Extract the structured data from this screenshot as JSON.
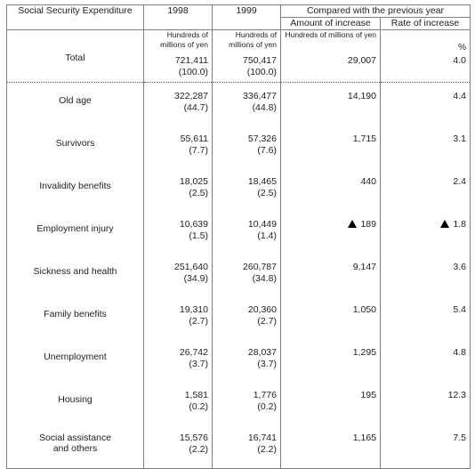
{
  "header": {
    "col1": "Social Security Expenditure",
    "col2": "1998",
    "col3": "1999",
    "group": "Compared with the previous year",
    "col4": "Amount of increase",
    "col5": "Rate of increase"
  },
  "units": {
    "col2": "Hundreds of millions of yen",
    "col3": "Hundreds of millions of yen",
    "col4": "Hundreds of millions of yen",
    "col5": "%"
  },
  "rows": [
    {
      "label": "Total",
      "v1998": "721,411",
      "s1998": "(100.0)",
      "v1999": "750,417",
      "s1999": "(100.0)",
      "amount": "29,007",
      "rate": "4.0",
      "decrease": false
    },
    {
      "label": "Old age",
      "v1998": "322,287",
      "s1998": "(44.7)",
      "v1999": "336,477",
      "s1999": "(44.8)",
      "amount": "14,190",
      "rate": "4.4",
      "decrease": false
    },
    {
      "label": "Survivors",
      "v1998": "55,611",
      "s1998": "(7.7)",
      "v1999": "57,326",
      "s1999": "(7.6)",
      "amount": "1,715",
      "rate": "3.1",
      "decrease": false
    },
    {
      "label": "Invalidity benefits",
      "v1998": "18,025",
      "s1998": "(2.5)",
      "v1999": "18,465",
      "s1999": "(2.5)",
      "amount": "440",
      "rate": "2.4",
      "decrease": false
    },
    {
      "label": "Employment injury",
      "v1998": "10,639",
      "s1998": "(1.5)",
      "v1999": "10,449",
      "s1999": "(1.4)",
      "amount": "189",
      "rate": "1.8",
      "decrease": true
    },
    {
      "label": "Sickness and health",
      "v1998": "251,640",
      "s1998": "(34.9)",
      "v1999": "260,787",
      "s1999": "(34.8)",
      "amount": "9,147",
      "rate": "3.6",
      "decrease": false
    },
    {
      "label": "Family benefits",
      "v1998": "19,310",
      "s1998": "(2.7)",
      "v1999": "20,360",
      "s1999": "(2.7)",
      "amount": "1,050",
      "rate": "5.4",
      "decrease": false
    },
    {
      "label": "Unemployment",
      "v1998": "26,742",
      "s1998": "(3.7)",
      "v1999": "28,037",
      "s1999": "(3.7)",
      "amount": "1,295",
      "rate": "4.8",
      "decrease": false
    },
    {
      "label": "Housing",
      "v1998": "1,581",
      "s1998": "(0.2)",
      "v1999": "1,776",
      "s1999": "(0.2)",
      "amount": "195",
      "rate": "12.3",
      "decrease": false
    },
    {
      "label": "Social assistance and others",
      "v1998": "15,576",
      "s1998": "(2.2)",
      "v1999": "16,741",
      "s1999": "(2.2)",
      "amount": "1,165",
      "rate": "7.5",
      "decrease": false
    }
  ]
}
